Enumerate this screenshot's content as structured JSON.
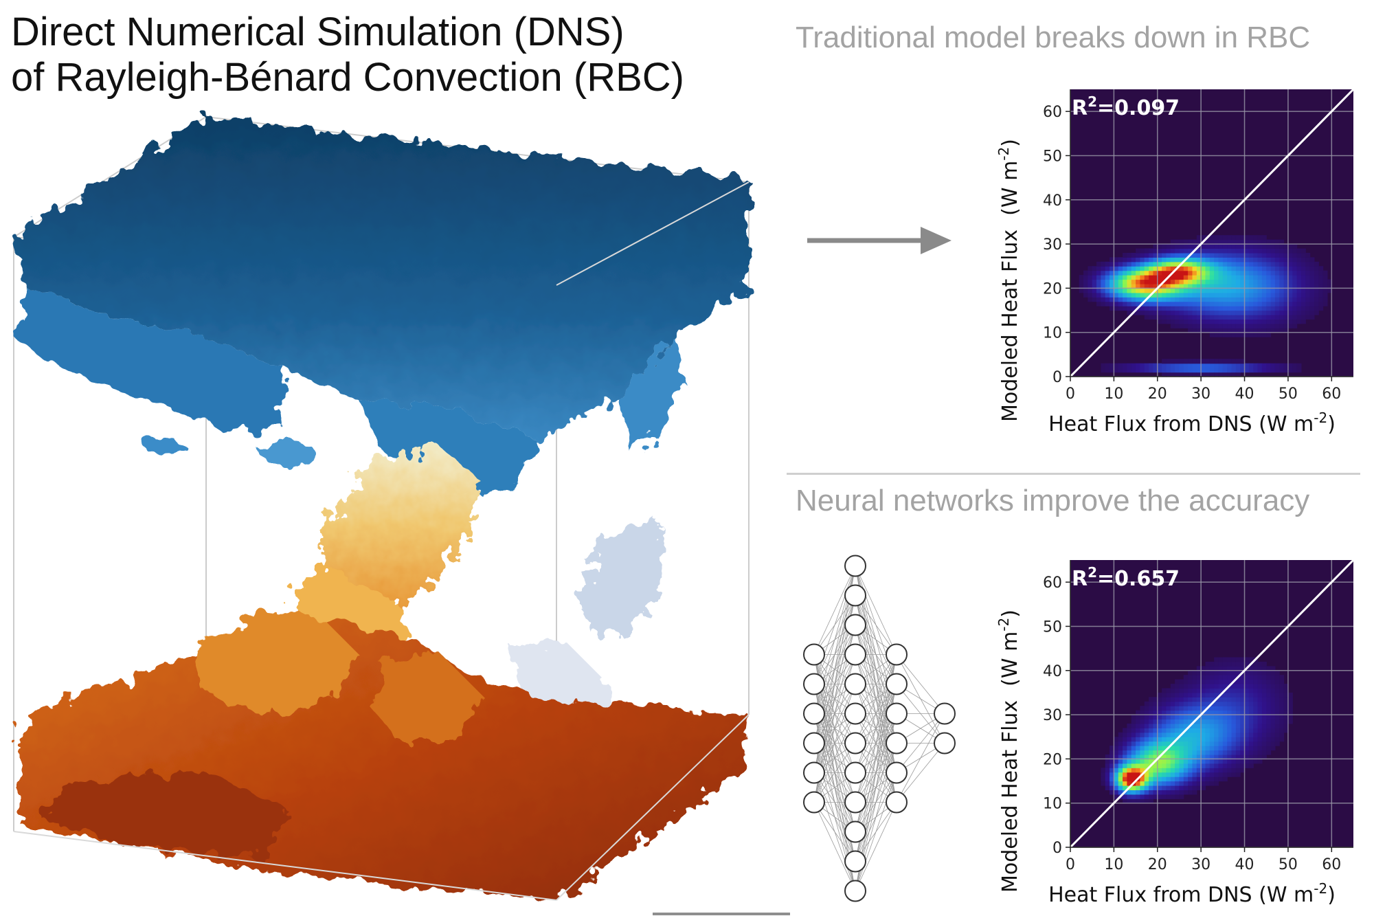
{
  "title": {
    "line1": "Direct Numerical Simulation (DNS)",
    "line2": "of Rayleigh-Bénard Convection (RBC)"
  },
  "top_panel": {
    "heading": "Traditional model breaks down in RBC",
    "r2_label": "R",
    "r2_value": "=0.097"
  },
  "bottom_panel": {
    "heading": "Neural networks improve the accuracy",
    "r2_label": "R",
    "r2_value": "=0.657"
  },
  "axes": {
    "ylabel_main": "Modeled Heat Flux",
    "ylabel_unit": "(W m",
    "xlabel": "Heat Flux from DNS (W m",
    "unit_exp": "-2",
    "close_paren": ")",
    "r2_exp": "2"
  },
  "colors": {
    "plot_bg": "#2b0c45",
    "cold_plume": "#1a5a8a",
    "hot_plume": "#b8420d",
    "arrow": "#8a8a8a",
    "heading": "#a3a3a3"
  },
  "network": {
    "layers": [
      6,
      12,
      6,
      2
    ]
  },
  "chart_data": [
    {
      "type": "heatmap",
      "title": "Traditional model breaks down in RBC",
      "xlabel": "Heat Flux from DNS (W m-2)",
      "ylabel": "Modeled Heat Flux (W m-2)",
      "xlim": [
        0,
        65
      ],
      "ylim": [
        0,
        65
      ],
      "xticks": [
        "0",
        "10",
        "20",
        "30",
        "40",
        "50",
        "60"
      ],
      "yticks": [
        "0",
        "10",
        "20",
        "30",
        "40",
        "50",
        "60"
      ],
      "annotation": "R2=0.097",
      "grid": true,
      "reference_line": "y = x",
      "density": {
        "colormap": "turbo",
        "background": "#2b0c45",
        "blobs": [
          {
            "x": 17,
            "y": 21,
            "sx": 6,
            "sy": 2.5,
            "intensity": 0.85
          },
          {
            "x": 25,
            "y": 24,
            "sx": 5,
            "sy": 2.0,
            "intensity": 0.65
          },
          {
            "x": 33,
            "y": 21,
            "sx": 10,
            "sy": 5,
            "intensity": 0.3
          },
          {
            "x": 42,
            "y": 20,
            "sx": 10,
            "sy": 6,
            "intensity": 0.15
          },
          {
            "x": 30,
            "y": 2,
            "sx": 12,
            "sy": 0.8,
            "intensity": 0.3
          }
        ]
      }
    },
    {
      "type": "heatmap",
      "title": "Neural networks improve the accuracy",
      "xlabel": "Heat Flux from DNS (W m-2)",
      "ylabel": "Modeled Heat Flux (W m-2)",
      "xlim": [
        0,
        65
      ],
      "ylim": [
        0,
        65
      ],
      "xticks": [
        "0",
        "10",
        "20",
        "30",
        "40",
        "50",
        "60"
      ],
      "yticks": [
        "0",
        "10",
        "20",
        "30",
        "40",
        "50",
        "60"
      ],
      "annotation": "R2=0.657",
      "grid": true,
      "reference_line": "y = x",
      "density": {
        "colormap": "turbo",
        "background": "#2b0c45",
        "blobs": [
          {
            "x": 14,
            "y": 15.5,
            "sx": 2.5,
            "sy": 2.0,
            "intensity": 1.0
          },
          {
            "x": 20,
            "y": 19,
            "sx": 5,
            "sy": 3.5,
            "intensity": 0.6
          },
          {
            "x": 28,
            "y": 25,
            "sx": 7,
            "sy": 5,
            "intensity": 0.35
          },
          {
            "x": 38,
            "y": 32,
            "sx": 8,
            "sy": 7,
            "intensity": 0.15
          }
        ]
      }
    }
  ]
}
